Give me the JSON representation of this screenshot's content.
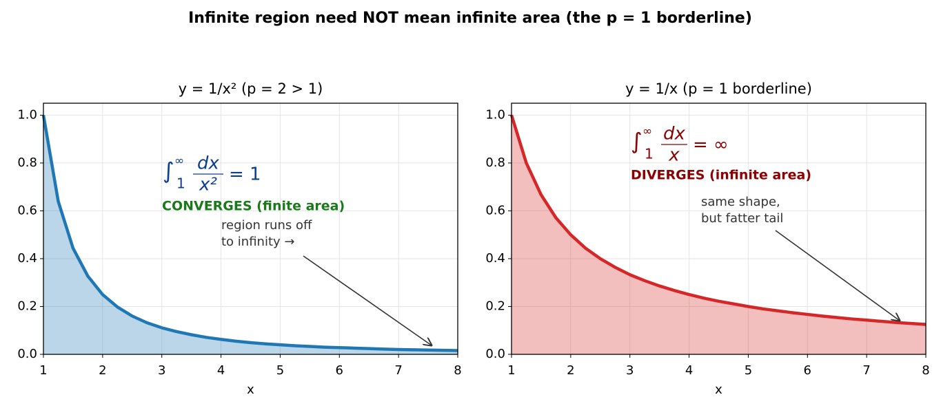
{
  "title": "Infinite region need NOT mean infinite area  (the p = 1 borderline)",
  "chart_data": [
    {
      "type": "area",
      "title": "y = 1/x²   (p = 2 > 1)",
      "xlabel": "x",
      "color": "#1f77b4",
      "grid": true,
      "x": [
        1,
        1.25,
        1.5,
        1.75,
        2,
        2.25,
        2.5,
        2.75,
        3,
        3.25,
        3.5,
        3.75,
        4,
        4.25,
        4.5,
        4.75,
        5,
        5.25,
        5.5,
        5.75,
        6,
        6.25,
        6.5,
        6.75,
        7,
        7.25,
        7.5,
        7.75,
        8
      ],
      "values": [
        1,
        0.64,
        0.444,
        0.327,
        0.25,
        0.198,
        0.16,
        0.132,
        0.111,
        0.095,
        0.082,
        0.071,
        0.0625,
        0.055,
        0.049,
        0.044,
        0.04,
        0.036,
        0.033,
        0.03,
        0.028,
        0.026,
        0.024,
        0.022,
        0.02,
        0.019,
        0.018,
        0.017,
        0.016
      ],
      "xlim": [
        1,
        8
      ],
      "ylim": [
        0,
        1.05
      ],
      "xticks": [
        1,
        2,
        3,
        4,
        5,
        6,
        7,
        8
      ],
      "yticks": [
        {
          "value": 0,
          "label": "0.0"
        },
        {
          "value": 0.2,
          "label": "0.2"
        },
        {
          "value": 0.4,
          "label": "0.4"
        },
        {
          "value": 0.6,
          "label": "0.6"
        },
        {
          "value": 0.8,
          "label": "0.8"
        },
        {
          "value": 1,
          "label": "1.0"
        }
      ],
      "formula": {
        "symbol": "∫",
        "upper": "∞",
        "lower": "1",
        "numerator": "dx",
        "denominator": "x²",
        "rhs": "= 1",
        "color": "#0b3d91"
      },
      "verdict": {
        "text": "CONVERGES  (finite area)",
        "color": "#1a7a1a"
      },
      "note": [
        "region runs off",
        "to infinity   →"
      ]
    },
    {
      "type": "area",
      "title": "y = 1/x   (p = 1 borderline)",
      "xlabel": "x",
      "color": "#d62728",
      "grid": true,
      "x": [
        1,
        1.25,
        1.5,
        1.75,
        2,
        2.25,
        2.5,
        2.75,
        3,
        3.25,
        3.5,
        3.75,
        4,
        4.25,
        4.5,
        4.75,
        5,
        5.25,
        5.5,
        5.75,
        6,
        6.25,
        6.5,
        6.75,
        7,
        7.25,
        7.5,
        7.75,
        8
      ],
      "values": [
        1,
        0.8,
        0.667,
        0.571,
        0.5,
        0.444,
        0.4,
        0.364,
        0.333,
        0.308,
        0.286,
        0.267,
        0.25,
        0.235,
        0.222,
        0.211,
        0.2,
        0.19,
        0.182,
        0.174,
        0.167,
        0.16,
        0.154,
        0.148,
        0.143,
        0.138,
        0.133,
        0.129,
        0.125
      ],
      "xlim": [
        1,
        8
      ],
      "ylim": [
        0,
        1.05
      ],
      "xticks": [
        1,
        2,
        3,
        4,
        5,
        6,
        7,
        8
      ],
      "yticks": [
        {
          "value": 0,
          "label": "0.0"
        },
        {
          "value": 0.2,
          "label": "0.2"
        },
        {
          "value": 0.4,
          "label": "0.4"
        },
        {
          "value": 0.6,
          "label": "0.6"
        },
        {
          "value": 0.8,
          "label": "0.8"
        },
        {
          "value": 1,
          "label": "1.0"
        }
      ],
      "formula": {
        "symbol": "∫",
        "upper": "∞",
        "lower": "1",
        "numerator": "dx",
        "denominator": "x",
        "rhs": "= ∞",
        "color": "#8b0000"
      },
      "verdict": {
        "text": "DIVERGES  (infinite area)",
        "color": "#8b0000"
      },
      "note": [
        "same shape,",
        "but fatter tail"
      ]
    }
  ]
}
